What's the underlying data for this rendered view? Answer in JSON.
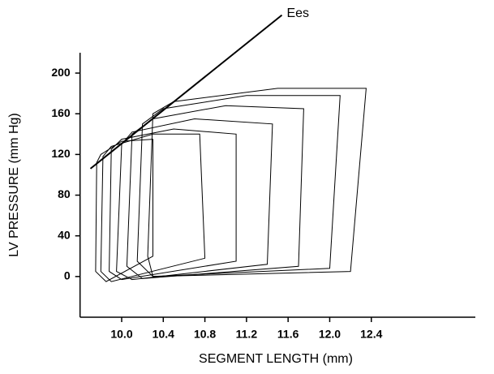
{
  "chart_data": {
    "type": "line",
    "xlabel": "SEGMENT LENGTH (mm)",
    "ylabel": "LV PRESSURE (mm Hg)",
    "color": "#000000",
    "xlim": [
      9.6,
      13.4
    ],
    "ylim": [
      -40,
      220
    ],
    "xticks": [
      {
        "value": 10,
        "label": "10.0"
      },
      10.4,
      10.8,
      11.2,
      11.6,
      {
        "value": 12,
        "label": "12.0"
      },
      12.4
    ],
    "yticks": [
      0,
      40,
      80,
      120,
      160,
      200
    ],
    "series": [
      {
        "x": [
          12.2,
          12.35,
          11.5,
          10.5,
          10.3,
          10.25,
          10.3,
          12.2
        ],
        "values": [
          5,
          185,
          185,
          172,
          160,
          20,
          0,
          5
        ]
      },
      {
        "x": [
          12.0,
          12.1,
          11.2,
          10.4,
          10.2,
          10.15,
          10.3,
          12.0
        ],
        "values": [
          8,
          178,
          178,
          165,
          150,
          15,
          0,
          8
        ]
      },
      {
        "x": [
          11.7,
          11.75,
          11.0,
          10.3,
          10.1,
          10.05,
          10.2,
          11.7
        ],
        "values": [
          10,
          165,
          168,
          155,
          140,
          10,
          -2,
          10
        ]
      },
      {
        "x": [
          11.4,
          11.45,
          10.7,
          10.1,
          10.0,
          9.95,
          10.1,
          11.4
        ],
        "values": [
          12,
          150,
          155,
          142,
          130,
          5,
          -3,
          12
        ]
      },
      {
        "x": [
          11.1,
          11.1,
          10.5,
          10.0,
          9.9,
          9.88,
          10.0,
          11.1
        ],
        "values": [
          15,
          140,
          145,
          135,
          125,
          5,
          -3,
          15
        ]
      },
      {
        "x": [
          10.8,
          10.75,
          10.3,
          9.9,
          9.82,
          9.8,
          9.9,
          10.8
        ],
        "values": [
          18,
          140,
          140,
          128,
          118,
          5,
          -5,
          18
        ]
      },
      {
        "x": [
          10.3,
          10.3,
          10.0,
          9.8,
          9.76,
          9.75,
          9.85,
          10.3
        ],
        "values": [
          20,
          135,
          133,
          120,
          112,
          5,
          -5,
          20
        ]
      }
    ],
    "ees_line": {
      "label": "Ees",
      "x": [
        9.7,
        11.54
      ],
      "values": [
        106,
        257
      ]
    }
  }
}
